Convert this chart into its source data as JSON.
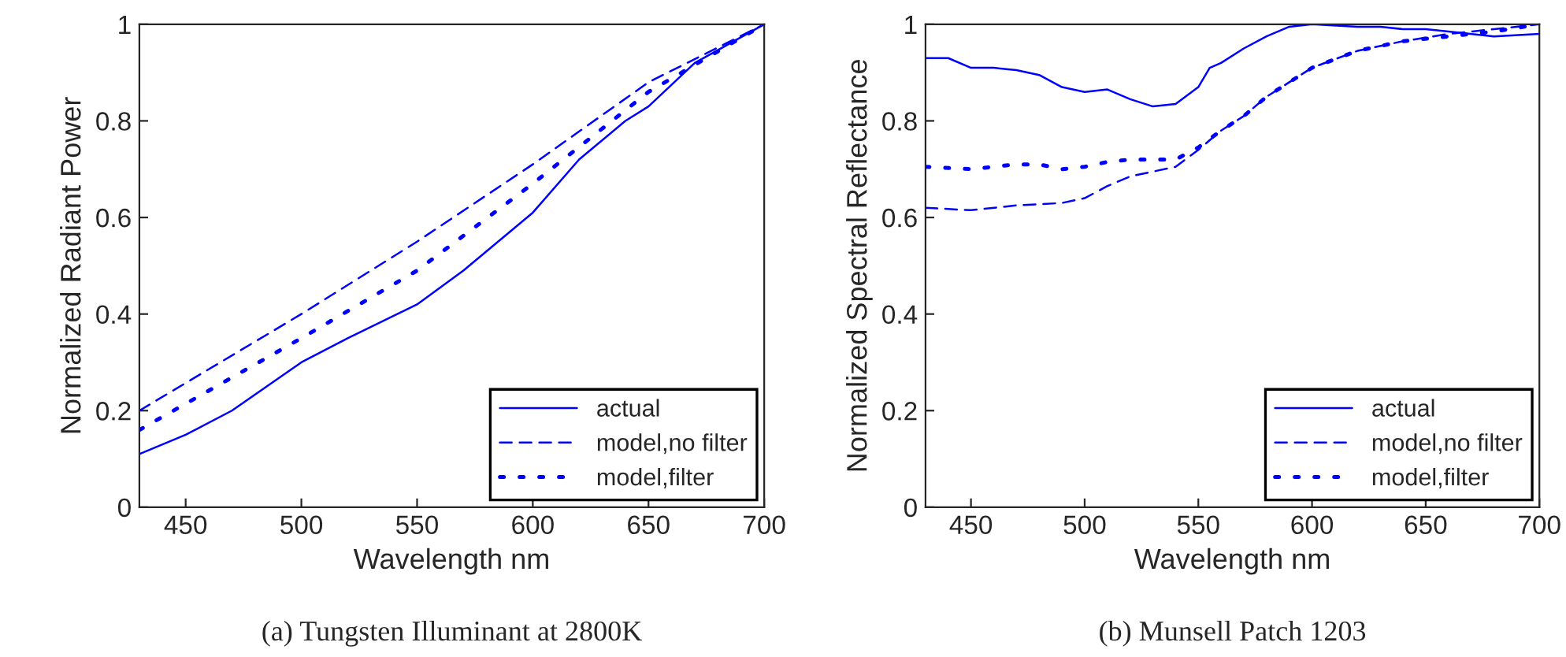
{
  "chart_data": [
    {
      "type": "line",
      "xlabel": "Wavelength nm",
      "ylabel": "Normalized Radiant Power",
      "annotations": [
        "(a) Tungsten Illuminant at 2800K"
      ],
      "xlim": [
        430,
        700
      ],
      "ylim": [
        0,
        1
      ],
      "xticks": [
        450,
        500,
        550,
        600,
        650,
        700
      ],
      "yticks": [
        0,
        0.2,
        0.4,
        0.6,
        0.8,
        1
      ],
      "grid": false,
      "legend": "bottom right",
      "series": [
        {
          "name": "actual",
          "color": "#0000ff",
          "line_style": "solid",
          "x": [
            430,
            450,
            470,
            500,
            520,
            550,
            570,
            580,
            600,
            620,
            640,
            650,
            670,
            700
          ],
          "values": [
            0.11,
            0.15,
            0.2,
            0.3,
            0.35,
            0.42,
            0.49,
            0.53,
            0.61,
            0.72,
            0.8,
            0.83,
            0.92,
            1
          ]
        },
        {
          "name": "model,no filter",
          "color": "#0000ff",
          "line_style": "dashed",
          "x": [
            430,
            500,
            550,
            600,
            650,
            700
          ],
          "values": [
            0.2,
            0.4,
            0.55,
            0.71,
            0.88,
            1
          ]
        },
        {
          "name": "model,filter",
          "color": "#0000ff",
          "line_style": "dotted",
          "x": [
            430,
            500,
            550,
            600,
            650,
            700
          ],
          "values": [
            0.16,
            0.35,
            0.49,
            0.67,
            0.86,
            1
          ]
        }
      ]
    },
    {
      "type": "line",
      "xlabel": "Wavelength nm",
      "ylabel": "Normalized Spectral Reflectance",
      "annotations": [
        "(b) Munsell Patch 1203"
      ],
      "xlim": [
        430,
        700
      ],
      "ylim": [
        0,
        1
      ],
      "xticks": [
        450,
        500,
        550,
        600,
        650,
        700
      ],
      "yticks": [
        0,
        0.2,
        0.4,
        0.6,
        0.8,
        1
      ],
      "grid": false,
      "legend": "bottom right",
      "series": [
        {
          "name": "actual",
          "color": "#0000ff",
          "line_style": "solid",
          "x": [
            430,
            440,
            450,
            460,
            470,
            480,
            490,
            500,
            510,
            520,
            530,
            540,
            550,
            555,
            560,
            570,
            580,
            590,
            600,
            620,
            630,
            640,
            650,
            660,
            680,
            700
          ],
          "values": [
            0.93,
            0.93,
            0.91,
            0.91,
            0.905,
            0.895,
            0.87,
            0.86,
            0.865,
            0.845,
            0.83,
            0.835,
            0.87,
            0.91,
            0.92,
            0.95,
            0.975,
            0.995,
            1,
            0.995,
            0.995,
            0.99,
            0.99,
            0.985,
            0.975,
            0.98
          ]
        },
        {
          "name": "model,no filter",
          "color": "#0000ff",
          "line_style": "dashed",
          "x": [
            430,
            450,
            470,
            490,
            500,
            510,
            520,
            530,
            540,
            550,
            560,
            570,
            580,
            590,
            600,
            620,
            640,
            660,
            680,
            700
          ],
          "values": [
            0.62,
            0.615,
            0.625,
            0.63,
            0.64,
            0.665,
            0.685,
            0.695,
            0.705,
            0.74,
            0.78,
            0.81,
            0.85,
            0.88,
            0.91,
            0.945,
            0.965,
            0.98,
            0.99,
            1
          ]
        },
        {
          "name": "model,filter",
          "color": "#0000ff",
          "line_style": "dotted",
          "x": [
            430,
            450,
            470,
            480,
            490,
            500,
            510,
            520,
            540,
            550,
            560,
            570,
            580,
            590,
            600,
            620,
            640,
            660,
            680,
            700
          ],
          "values": [
            0.705,
            0.7,
            0.71,
            0.71,
            0.7,
            0.705,
            0.715,
            0.72,
            0.72,
            0.745,
            0.78,
            0.81,
            0.85,
            0.88,
            0.91,
            0.945,
            0.965,
            0.975,
            0.985,
            1
          ]
        }
      ]
    }
  ]
}
